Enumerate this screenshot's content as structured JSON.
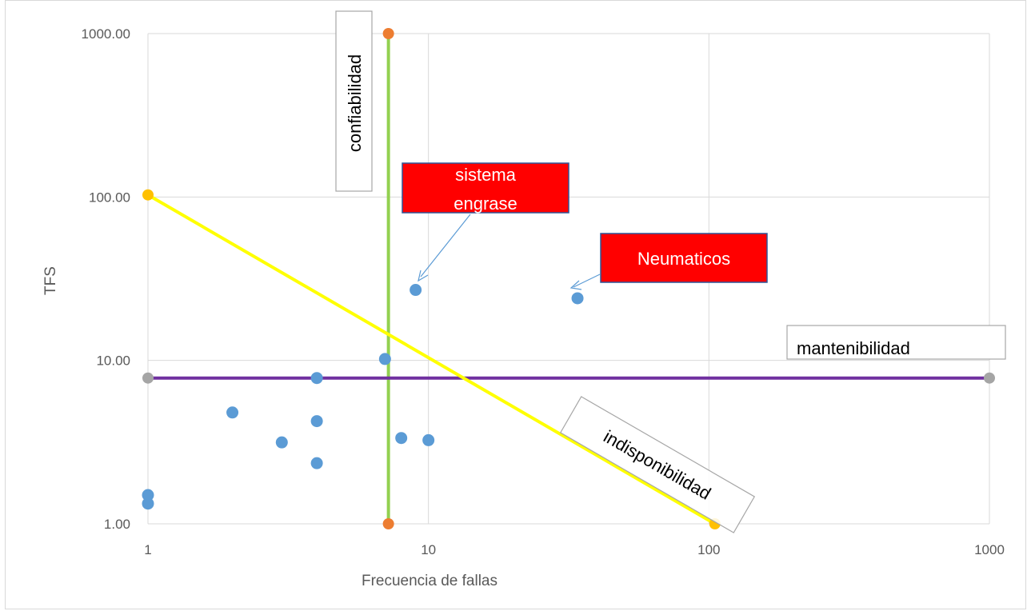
{
  "chart_data": {
    "type": "scatter",
    "title": "",
    "xlabel": "Frecuencia de fallas",
    "ylabel": "TFS",
    "x_scale": "log",
    "y_scale": "log",
    "xlim": [
      1,
      1000
    ],
    "ylim": [
      1,
      1000
    ],
    "x_ticks": [
      "1",
      "10",
      "100",
      "1000"
    ],
    "y_ticks": [
      "1.00",
      "10.00",
      "100.00",
      "1000.00"
    ],
    "grid": true,
    "legend": "none",
    "series": [
      {
        "color": "#5b9bd5",
        "points": [
          {
            "x": 1,
            "y": 1.5
          },
          {
            "x": 1,
            "y": 1.33
          },
          {
            "x": 2,
            "y": 4.8
          },
          {
            "x": 3,
            "y": 3.15
          },
          {
            "x": 4,
            "y": 7.8
          },
          {
            "x": 4,
            "y": 4.25
          },
          {
            "x": 4,
            "y": 2.35
          },
          {
            "x": 7,
            "y": 10.2
          },
          {
            "x": 8,
            "y": 3.35
          },
          {
            "x": 9,
            "y": 27
          },
          {
            "x": 10,
            "y": 3.25
          },
          {
            "x": 34,
            "y": 24
          }
        ]
      }
    ],
    "lines": [
      {
        "color": "#92d050",
        "points": [
          {
            "x": 7.2,
            "y": 1
          },
          {
            "x": 7.2,
            "y": 1000
          }
        ],
        "marker_color": "#ed7d31"
      },
      {
        "color": "#7030a0",
        "points": [
          {
            "x": 1,
            "y": 7.8
          },
          {
            "x": 1000,
            "y": 7.8
          }
        ],
        "marker_color": "#a5a5a5"
      },
      {
        "color": "#ffff00",
        "points": [
          {
            "x": 1,
            "y": 103
          },
          {
            "x": 105,
            "y": 1
          }
        ],
        "marker_color": "#ffc000"
      }
    ],
    "annotations": [
      {
        "text": "confiabilidad",
        "box_fill": "#ffffff",
        "text_color": "#000000"
      },
      {
        "text": "sistema engrase",
        "box_fill": "#ff0000",
        "text_color": "#ffffff"
      },
      {
        "text": "Neumaticos",
        "box_fill": "#ff0000",
        "text_color": "#ffffff"
      },
      {
        "text": "mantenibilidad",
        "box_fill": "#ffffff",
        "text_color": "#000000"
      },
      {
        "text": "indisponibilidad",
        "box_fill": "#ffffff",
        "text_color": "#000000"
      }
    ]
  }
}
